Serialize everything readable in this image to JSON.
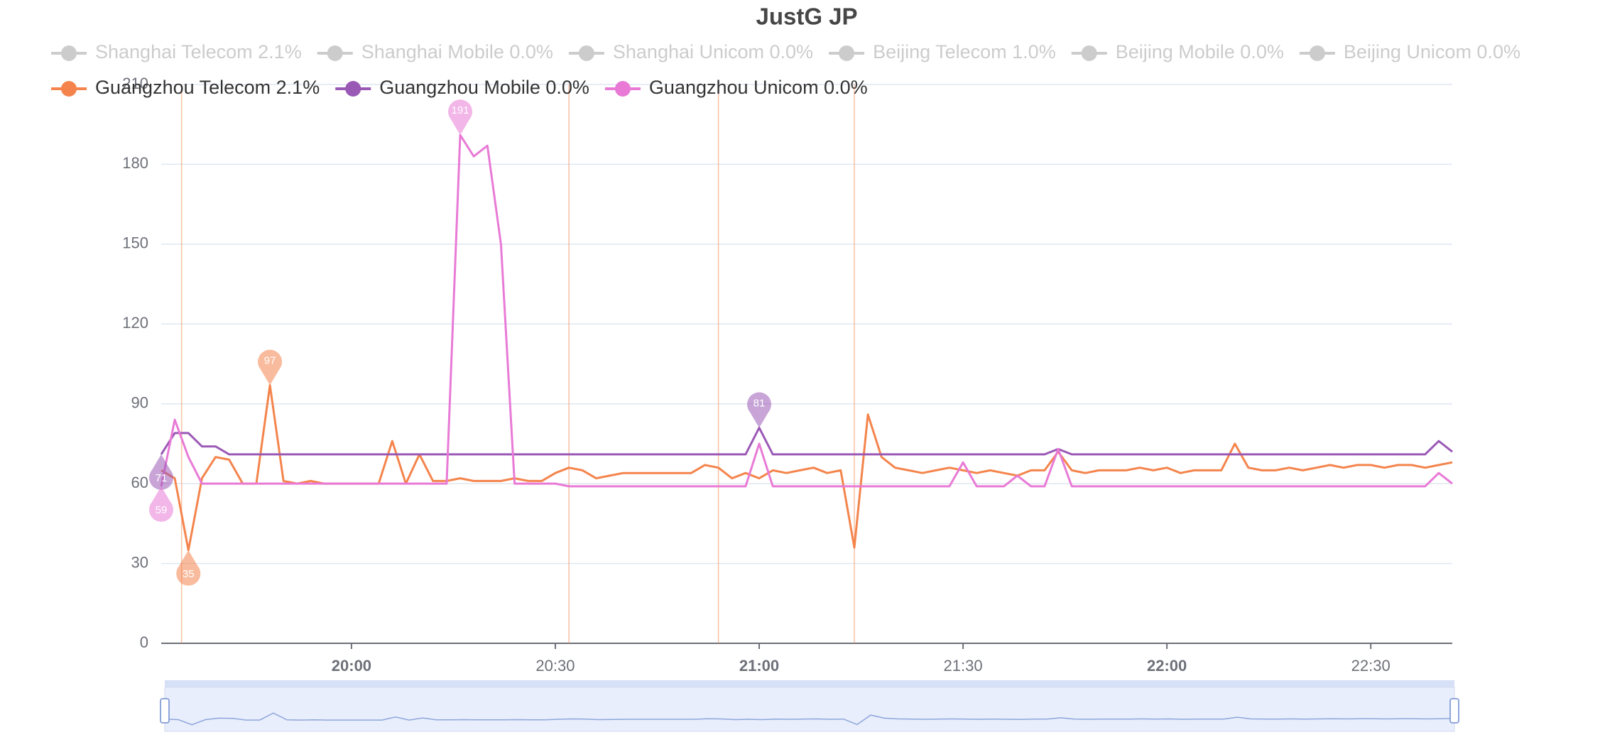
{
  "chart_data": {
    "type": "line",
    "title": "JustG JP",
    "legend_inactive": [
      "Shanghai Telecom 2.1%",
      "Shanghai Mobile 0.0%",
      "Shanghai Unicom 0.0%",
      "Beijing Telecom 1.0%",
      "Beijing Mobile 0.0%",
      "Beijing Unicom 0.0%"
    ],
    "inactive_color": "#cccccc",
    "x": [
      "19:32",
      "19:34",
      "19:36",
      "19:38",
      "19:40",
      "19:42",
      "19:44",
      "19:46",
      "19:48",
      "19:50",
      "19:52",
      "19:54",
      "19:56",
      "19:58",
      "20:00",
      "20:02",
      "20:04",
      "20:06",
      "20:08",
      "20:10",
      "20:12",
      "20:14",
      "20:16",
      "20:18",
      "20:20",
      "20:22",
      "20:24",
      "20:26",
      "20:28",
      "20:30",
      "20:32",
      "20:34",
      "20:36",
      "20:38",
      "20:40",
      "20:42",
      "20:44",
      "20:46",
      "20:48",
      "20:50",
      "20:52",
      "20:54",
      "20:56",
      "20:58",
      "21:00",
      "21:02",
      "21:04",
      "21:06",
      "21:08",
      "21:10",
      "21:12",
      "21:14",
      "21:16",
      "21:18",
      "21:20",
      "21:22",
      "21:24",
      "21:26",
      "21:28",
      "21:30",
      "21:32",
      "21:34",
      "21:36",
      "21:38",
      "21:40",
      "21:42",
      "21:44",
      "21:46",
      "21:48",
      "21:50",
      "21:52",
      "21:54",
      "21:56",
      "21:58",
      "22:00",
      "22:02",
      "22:04",
      "22:06",
      "22:08",
      "22:10",
      "22:12",
      "22:14",
      "22:16",
      "22:18",
      "22:20",
      "22:22",
      "22:24",
      "22:26",
      "22:28",
      "22:30",
      "22:32",
      "22:34",
      "22:36",
      "22:38",
      "22:40",
      "22:42"
    ],
    "series": [
      {
        "name": "Guangzhou Telecom 2.1%",
        "color": "#f4844c",
        "mark_lines_x": [
          "19:35",
          "20:32",
          "20:54",
          "21:14"
        ],
        "values": [
          65,
          62,
          35,
          62,
          70,
          69,
          60,
          60,
          97,
          61,
          60,
          61,
          60,
          60,
          60,
          60,
          60,
          76,
          60,
          71,
          61,
          61,
          62,
          61,
          61,
          61,
          62,
          61,
          61,
          64,
          66,
          65,
          62,
          63,
          64,
          64,
          64,
          64,
          64,
          64,
          67,
          66,
          62,
          64,
          62,
          65,
          64,
          65,
          66,
          64,
          65,
          36,
          86,
          70,
          66,
          65,
          64,
          65,
          66,
          65,
          64,
          65,
          64,
          63,
          65,
          65,
          72,
          65,
          64,
          65,
          65,
          65,
          66,
          65,
          66,
          64,
          65,
          65,
          65,
          75,
          66,
          65,
          65,
          66,
          65,
          66,
          67,
          66,
          67,
          67,
          66,
          67,
          67,
          66,
          67,
          68
        ]
      },
      {
        "name": "Guangzhou Mobile 0.0%",
        "color": "#9b59b6",
        "values": [
          71,
          79,
          79,
          74,
          74,
          71,
          71,
          71,
          71,
          71,
          71,
          71,
          71,
          71,
          71,
          71,
          71,
          71,
          71,
          71,
          71,
          71,
          71,
          71,
          71,
          71,
          71,
          71,
          71,
          71,
          71,
          71,
          71,
          71,
          71,
          71,
          71,
          71,
          71,
          71,
          71,
          71,
          71,
          71,
          81,
          71,
          71,
          71,
          71,
          71,
          71,
          71,
          71,
          71,
          71,
          71,
          71,
          71,
          71,
          71,
          71,
          71,
          71,
          71,
          71,
          71,
          73,
          71,
          71,
          71,
          71,
          71,
          71,
          71,
          71,
          71,
          71,
          71,
          71,
          71,
          71,
          71,
          71,
          71,
          71,
          71,
          71,
          71,
          71,
          71,
          71,
          71,
          71,
          71,
          76,
          72
        ]
      },
      {
        "name": "Guangzhou Unicom 0.0%",
        "color": "#e87ad6",
        "values": [
          59,
          84,
          70,
          60,
          60,
          60,
          60,
          60,
          60,
          60,
          60,
          60,
          60,
          60,
          60,
          60,
          60,
          60,
          60,
          60,
          60,
          60,
          191,
          183,
          187,
          150,
          60,
          60,
          60,
          60,
          59,
          59,
          59,
          59,
          59,
          59,
          59,
          59,
          59,
          59,
          59,
          59,
          59,
          59,
          75,
          59,
          59,
          59,
          59,
          59,
          59,
          59,
          59,
          59,
          59,
          59,
          59,
          59,
          59,
          68,
          59,
          59,
          59,
          63,
          59,
          59,
          73,
          59,
          59,
          59,
          59,
          59,
          59,
          59,
          59,
          59,
          59,
          59,
          59,
          59,
          59,
          59,
          59,
          59,
          59,
          59,
          59,
          59,
          59,
          59,
          59,
          59,
          59,
          59,
          64,
          60
        ]
      }
    ],
    "xlim": [
      "19:32",
      "22:42"
    ],
    "xticks": [
      "20:00",
      "20:30",
      "21:00",
      "21:30",
      "22:00",
      "22:30"
    ],
    "ylim": [
      0,
      210
    ],
    "yticks": [
      0,
      30,
      60,
      90,
      120,
      150,
      180,
      210
    ],
    "grid": true
  }
}
